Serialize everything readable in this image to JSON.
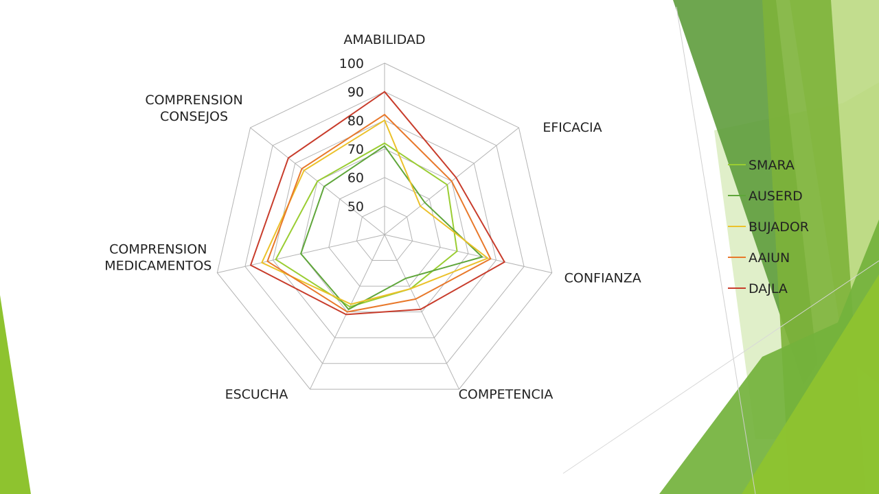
{
  "chart_data": {
    "type": "radar",
    "axes": [
      {
        "label": [
          "AMABILIDAD"
        ]
      },
      {
        "label": [
          "EFICACIA"
        ]
      },
      {
        "label": [
          "CONFIANZA"
        ]
      },
      {
        "label": [
          "COMPETENCIA"
        ]
      },
      {
        "label": [
          "ESCUCHA"
        ]
      },
      {
        "label": [
          "COMPRENSION",
          "MEDICAMENTOS"
        ]
      },
      {
        "label": [
          "COMPRENSION",
          "CONSEJOS"
        ]
      }
    ],
    "ticks": [
      50,
      60,
      70,
      80,
      90,
      100
    ],
    "tick_labels": [
      "50",
      "60",
      "70",
      "80",
      "90",
      "100"
    ],
    "range": [
      40,
      100
    ],
    "legend_position": "right",
    "series": [
      {
        "name": "SMARA",
        "color": "#9ACD32",
        "values": [
          72,
          68,
          66,
          61,
          68,
          79,
          70
        ]
      },
      {
        "name": "AUSERD",
        "color": "#5FA63A",
        "values": [
          71,
          58,
          75,
          57,
          69,
          70,
          67
        ]
      },
      {
        "name": "BUJADOR",
        "color": "#EBC12A",
        "values": [
          80,
          56,
          77,
          61,
          67,
          84,
          76
        ]
      },
      {
        "name": "AAIUN",
        "color": "#E8782A",
        "values": [
          82,
          70,
          78,
          65,
          70,
          82,
          77
        ]
      },
      {
        "name": "DAJLA",
        "color": "#C83C2B",
        "values": [
          90,
          72,
          83,
          69,
          71,
          88,
          83
        ]
      }
    ]
  }
}
